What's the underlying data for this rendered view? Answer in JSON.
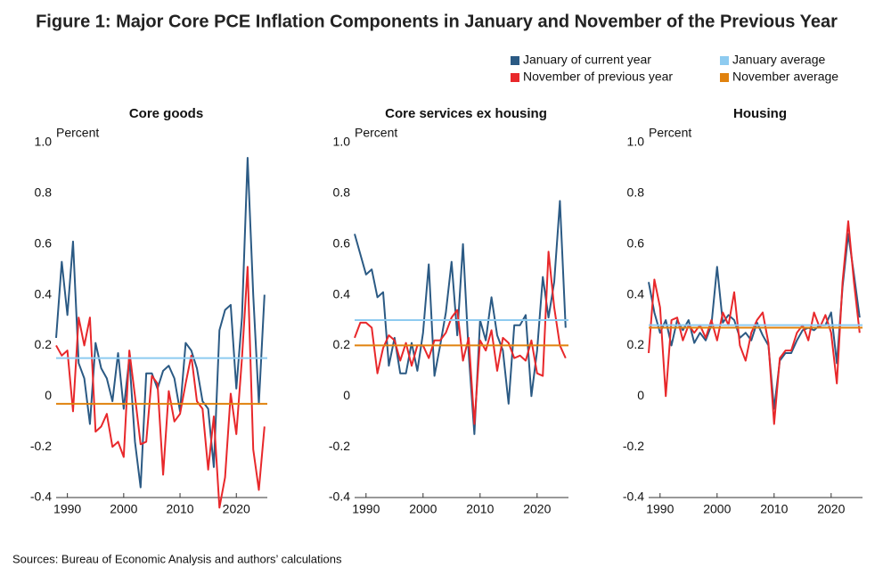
{
  "title": "Figure 1: Major Core PCE Inflation Components in January and November of the Previous Year",
  "source": "Sources: Bureau of Economic Analysis and authors’ calculations",
  "chart_data": [
    {
      "type": "line",
      "title": "Core goods",
      "ylabel": "Percent",
      "x": [
        1988,
        1989,
        1990,
        1991,
        1992,
        1993,
        1994,
        1995,
        1996,
        1997,
        1998,
        1999,
        2000,
        2001,
        2002,
        2003,
        2004,
        2005,
        2006,
        2007,
        2008,
        2009,
        2010,
        2011,
        2012,
        2013,
        2014,
        2015,
        2016,
        2017,
        2018,
        2019,
        2020,
        2021,
        2022,
        2023,
        2024,
        2025
      ],
      "xlim": [
        1988,
        2025.5
      ],
      "xticks": [
        1990,
        2000,
        2010,
        2020
      ],
      "ylim": [
        -0.4,
        1.0
      ],
      "yticks": [
        -0.4,
        -0.2,
        0,
        0.2,
        0.4,
        0.6,
        0.8,
        {
          "value": 1,
          "label": "1.0"
        }
      ],
      "series": [
        {
          "name": "January of current year",
          "color": "#2b5a84",
          "values": [
            0.23,
            0.53,
            0.32,
            0.61,
            0.13,
            0.07,
            -0.11,
            0.21,
            0.11,
            0.07,
            -0.02,
            0.17,
            -0.05,
            0.15,
            -0.18,
            -0.36,
            0.09,
            0.09,
            0.03,
            0.1,
            0.12,
            0.07,
            -0.06,
            0.21,
            0.18,
            0.11,
            -0.02,
            -0.05,
            -0.28,
            0.26,
            0.34,
            0.36,
            0.03,
            0.31,
            0.94,
            0.4,
            -0.03,
            0.4
          ]
        },
        {
          "name": "November of previous year",
          "color": "#e8282b",
          "values": [
            0.2,
            0.16,
            0.18,
            -0.06,
            0.31,
            0.2,
            0.31,
            -0.14,
            -0.12,
            -0.07,
            -0.2,
            -0.18,
            -0.24,
            0.18,
            0.0,
            -0.19,
            -0.18,
            0.08,
            0.05,
            -0.31,
            0.02,
            -0.1,
            -0.07,
            0.05,
            0.16,
            -0.02,
            -0.05,
            -0.29,
            -0.08,
            -0.44,
            -0.32,
            0.01,
            -0.15,
            0.15,
            0.51,
            -0.21,
            -0.37,
            -0.12
          ]
        }
      ],
      "reference_lines": [
        {
          "name": "January average",
          "color": "#8ecbf0",
          "value": 0.15
        },
        {
          "name": "November average",
          "color": "#e0820e",
          "value": -0.03
        }
      ]
    },
    {
      "type": "line",
      "title": "Core services ex housing",
      "ylabel": "Percent",
      "x": [
        1988,
        1989,
        1990,
        1991,
        1992,
        1993,
        1994,
        1995,
        1996,
        1997,
        1998,
        1999,
        2000,
        2001,
        2002,
        2003,
        2004,
        2005,
        2006,
        2007,
        2008,
        2009,
        2010,
        2011,
        2012,
        2013,
        2014,
        2015,
        2016,
        2017,
        2018,
        2019,
        2020,
        2021,
        2022,
        2023,
        2024,
        2025
      ],
      "xlim": [
        1988,
        2025.5
      ],
      "xticks": [
        1990,
        2000,
        2010,
        2020
      ],
      "ylim": [
        -0.4,
        1.0
      ],
      "yticks": [
        -0.4,
        -0.2,
        0,
        0.2,
        0.4,
        0.6,
        0.8,
        {
          "value": 1,
          "label": "1.0"
        }
      ],
      "series": [
        {
          "color": "#2b5a84",
          "values": [
            0.64,
            0.56,
            0.48,
            0.5,
            0.39,
            0.41,
            0.12,
            0.23,
            0.09,
            0.09,
            0.21,
            0.1,
            0.25,
            0.52,
            0.08,
            0.2,
            0.33,
            0.53,
            0.24,
            0.6,
            0.17,
            -0.15,
            0.3,
            0.22,
            0.39,
            0.24,
            0.18,
            -0.03,
            0.28,
            0.28,
            0.32,
            0.0,
            0.18,
            0.47,
            0.31,
            0.45,
            0.77,
            0.27
          ]
        },
        {
          "color": "#e8282b",
          "values": [
            0.23,
            0.29,
            0.29,
            0.27,
            0.09,
            0.19,
            0.24,
            0.22,
            0.14,
            0.21,
            0.12,
            0.2,
            0.2,
            0.15,
            0.22,
            0.22,
            0.25,
            0.31,
            0.34,
            0.14,
            0.23,
            -0.11,
            0.22,
            0.18,
            0.26,
            0.1,
            0.23,
            0.21,
            0.15,
            0.16,
            0.14,
            0.22,
            0.09,
            0.08,
            0.57,
            0.35,
            0.2,
            0.15
          ]
        }
      ],
      "reference_lines": [
        {
          "color": "#8ecbf0",
          "value": 0.3
        },
        {
          "color": "#e0820e",
          "value": 0.2
        }
      ]
    },
    {
      "type": "line",
      "title": "Housing",
      "ylabel": "Percent",
      "x": [
        1988,
        1989,
        1990,
        1991,
        1992,
        1993,
        1994,
        1995,
        1996,
        1997,
        1998,
        1999,
        2000,
        2001,
        2002,
        2003,
        2004,
        2005,
        2006,
        2007,
        2008,
        2009,
        2010,
        2011,
        2012,
        2013,
        2014,
        2015,
        2016,
        2017,
        2018,
        2019,
        2020,
        2021,
        2022,
        2023,
        2024,
        2025
      ],
      "xlim": [
        1988,
        2025.5
      ],
      "xticks": [
        1990,
        2000,
        2010,
        2020
      ],
      "ylim": [
        -0.4,
        1.0
      ],
      "yticks": [
        -0.4,
        -0.2,
        0,
        0.2,
        0.4,
        0.6,
        0.8,
        {
          "value": 1,
          "label": "1.0"
        }
      ],
      "series": [
        {
          "color": "#2b5a84",
          "values": [
            0.45,
            0.33,
            0.25,
            0.3,
            0.2,
            0.3,
            0.26,
            0.3,
            0.21,
            0.25,
            0.22,
            0.28,
            0.51,
            0.29,
            0.32,
            0.3,
            0.23,
            0.25,
            0.22,
            0.29,
            0.24,
            0.2,
            -0.05,
            0.14,
            0.17,
            0.17,
            0.22,
            0.26,
            0.27,
            0.26,
            0.28,
            0.28,
            0.33,
            0.13,
            0.43,
            0.64,
            0.48,
            0.31
          ]
        },
        {
          "color": "#e8282b",
          "values": [
            0.17,
            0.46,
            0.35,
            0.0,
            0.3,
            0.31,
            0.22,
            0.28,
            0.25,
            0.28,
            0.23,
            0.3,
            0.22,
            0.33,
            0.28,
            0.41,
            0.2,
            0.14,
            0.25,
            0.3,
            0.33,
            0.21,
            -0.11,
            0.15,
            0.18,
            0.18,
            0.25,
            0.28,
            0.22,
            0.33,
            0.27,
            0.32,
            0.25,
            0.05,
            0.45,
            0.69,
            0.45,
            0.25
          ]
        }
      ],
      "reference_lines": [
        {
          "color": "#8ecbf0",
          "value": 0.28
        },
        {
          "color": "#e0820e",
          "value": 0.27
        }
      ]
    }
  ]
}
